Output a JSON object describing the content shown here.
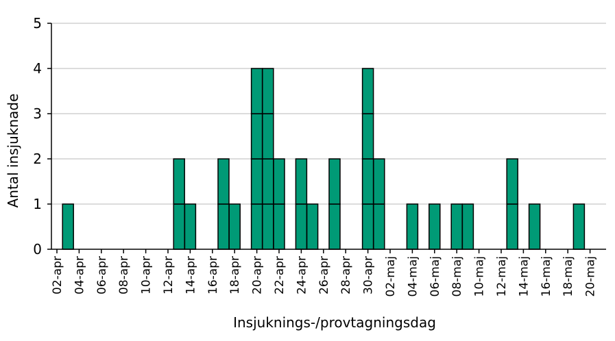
{
  "chart_data": {
    "type": "bar",
    "style": "stacked-unit-cases (epicurve)",
    "xlabel": "Insjuknings-/provtagningsdag",
    "ylabel": "Antal insjuknade",
    "ylim": [
      0,
      5
    ],
    "yticks": [
      0,
      1,
      2,
      3,
      4,
      5
    ],
    "grid": "horizontal",
    "bar_color": "#009a76",
    "categories": [
      "02-apr",
      "03-apr",
      "04-apr",
      "05-apr",
      "06-apr",
      "07-apr",
      "08-apr",
      "09-apr",
      "10-apr",
      "11-apr",
      "12-apr",
      "13-apr",
      "14-apr",
      "15-apr",
      "16-apr",
      "17-apr",
      "18-apr",
      "19-apr",
      "20-apr",
      "21-apr",
      "22-apr",
      "23-apr",
      "24-apr",
      "25-apr",
      "26-apr",
      "27-apr",
      "28-apr",
      "29-apr",
      "30-apr",
      "01-maj",
      "02-maj",
      "03-maj",
      "04-maj",
      "05-maj",
      "06-maj",
      "07-maj",
      "08-maj",
      "09-maj",
      "10-maj",
      "11-maj",
      "12-maj",
      "13-maj",
      "14-maj",
      "15-maj",
      "16-maj",
      "17-maj",
      "18-maj",
      "19-maj",
      "20-maj",
      "21-maj"
    ],
    "values": [
      0,
      1,
      0,
      0,
      0,
      0,
      0,
      0,
      0,
      0,
      0,
      2,
      1,
      0,
      0,
      2,
      1,
      0,
      4,
      4,
      2,
      0,
      2,
      1,
      0,
      2,
      0,
      0,
      4,
      2,
      0,
      0,
      1,
      0,
      1,
      0,
      1,
      1,
      0,
      0,
      0,
      2,
      0,
      1,
      0,
      0,
      0,
      1,
      0,
      0
    ],
    "tick_labels": [
      "02-apr",
      "04-apr",
      "06-apr",
      "08-apr",
      "10-apr",
      "12-apr",
      "14-apr",
      "16-apr",
      "18-apr",
      "20-apr",
      "22-apr",
      "24-apr",
      "26-apr",
      "28-apr",
      "30-apr",
      "02-maj",
      "04-maj",
      "06-maj",
      "08-maj",
      "10-maj",
      "12-maj",
      "14-maj",
      "16-maj",
      "18-maj",
      "20-maj"
    ]
  }
}
